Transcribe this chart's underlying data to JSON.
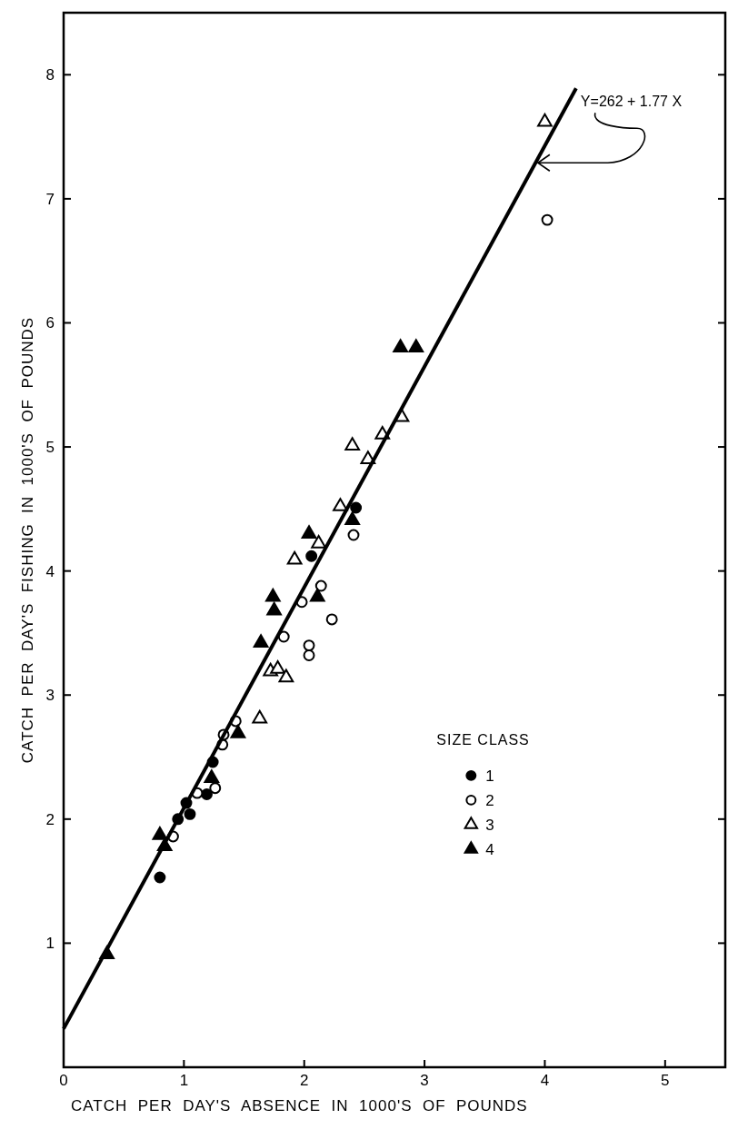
{
  "chart_data": {
    "type": "scatter",
    "xlabel": "CATCH  PER  DAY'S  ABSENCE  IN  1000'S  OF  POUNDS",
    "ylabel": "CATCH  PER  DAY'S  FISHING  IN  1000'S  OF  POUNDS",
    "legend_title": "SIZE CLASS",
    "legend": "bottom right",
    "grid": false,
    "xlim": [
      0,
      5.5
    ],
    "xticks": [
      0,
      1,
      2,
      3,
      4,
      5
    ],
    "ylim": [
      0,
      8.5
    ],
    "yticks": [
      1,
      2,
      3,
      4,
      5,
      6,
      7,
      8
    ],
    "annotations": [
      {
        "text": "Y=262 + 1.77 X",
        "x": 3.92,
        "y": 7.29
      }
    ],
    "series": [
      {
        "name": "1",
        "color": "#000000",
        "marker": "circle",
        "x": [
          0.8,
          0.95,
          1.02,
          1.05,
          1.19,
          1.24,
          2.06,
          2.43
        ],
        "values": [
          1.53,
          2.0,
          2.13,
          2.04,
          2.2,
          2.46,
          4.12,
          4.51
        ]
      },
      {
        "name": "2",
        "color": "#ffffff",
        "marker": "circle",
        "x": [
          0.91,
          1.11,
          1.26,
          1.32,
          1.33,
          1.43,
          1.83,
          1.98,
          2.14,
          2.23,
          2.04,
          2.04,
          2.41,
          4.02
        ],
        "values": [
          1.86,
          2.21,
          2.25,
          2.6,
          2.68,
          2.79,
          3.47,
          3.75,
          3.88,
          3.61,
          3.4,
          3.32,
          4.29,
          6.83
        ]
      },
      {
        "name": "3",
        "color": "#ffffff",
        "marker": "triangle",
        "x": [
          1.63,
          1.72,
          1.78,
          1.85,
          1.92,
          2.12,
          2.3,
          2.4,
          2.53,
          2.65,
          2.81,
          4.0
        ],
        "values": [
          2.81,
          3.19,
          3.21,
          3.14,
          4.09,
          4.22,
          4.52,
          5.01,
          4.9,
          5.1,
          5.24,
          7.62
        ]
      },
      {
        "name": "4",
        "color": "#000000",
        "marker": "triangle",
        "x": [
          0.36,
          0.8,
          0.84,
          1.23,
          1.45,
          1.64,
          1.74,
          1.75,
          2.11,
          2.04,
          2.4,
          2.8,
          2.93
        ],
        "values": [
          0.91,
          1.87,
          1.78,
          2.33,
          2.69,
          3.42,
          3.79,
          3.68,
          3.79,
          4.3,
          4.41,
          5.8,
          5.8
        ]
      },
      {
        "type": "line",
        "color": "#000000",
        "marker": "none",
        "x": [
          0,
          4.26
        ],
        "values": [
          0.31,
          7.89
        ]
      }
    ]
  }
}
